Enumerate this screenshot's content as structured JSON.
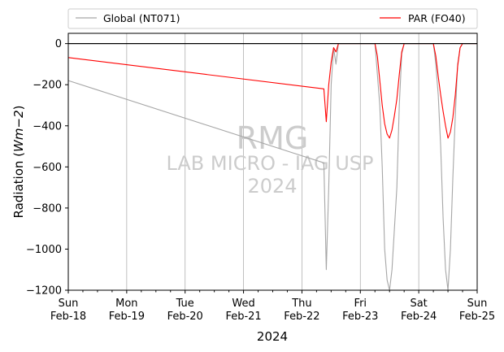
{
  "chart_data": {
    "type": "line",
    "xlabel": "2024",
    "ylabel_main": "Radiation (",
    "ylabel_unit_italic": "Wm",
    "ylabel_exponent": "−2",
    "ylabel_close": ")",
    "ylim": [
      -1200,
      50
    ],
    "yticks": [
      0,
      -200,
      -400,
      -600,
      -800,
      -1000,
      -1200
    ],
    "ytick_labels": [
      "0",
      "−200",
      "−400",
      "−600",
      "−800",
      "−1000",
      "−1200"
    ],
    "xlim": [
      "2024-02-18",
      "2024-02-25"
    ],
    "xticks": [
      {
        "day": "Sun",
        "date": "Feb-18"
      },
      {
        "day": "Mon",
        "date": "Feb-19"
      },
      {
        "day": "Tue",
        "date": "Feb-20"
      },
      {
        "day": "Wed",
        "date": "Feb-21"
      },
      {
        "day": "Thu",
        "date": "Feb-22"
      },
      {
        "day": "Fri",
        "date": "Feb-23"
      },
      {
        "day": "Sat",
        "date": "Feb-24"
      },
      {
        "day": "Sun",
        "date": "Feb-25"
      }
    ],
    "grid": "vertical-major",
    "zero_line": 0,
    "legend_position": "top",
    "watermark": [
      "RMG",
      "LAB MICRO - IAG USP",
      "2024"
    ],
    "series": [
      {
        "name": "Global (NT071)",
        "color": "#a6a6a6",
        "points": [
          [
            "2024-02-18 00:00",
            -180
          ],
          [
            "2024-02-22 09:00",
            -580
          ],
          [
            "2024-02-22 10:00",
            -1100
          ],
          [
            "2024-02-22 11:00",
            -700
          ],
          [
            "2024-02-22 12:00",
            -200
          ],
          [
            "2024-02-22 13:00",
            -20
          ],
          [
            "2024-02-22 14:00",
            -100
          ],
          [
            "2024-02-22 15:00",
            0
          ],
          [
            "2024-02-22 18:00",
            0
          ],
          [
            "2024-02-22 21:00",
            0
          ],
          [
            "2024-02-23 00:00",
            0
          ],
          [
            "2024-02-23 03:00",
            0
          ],
          [
            "2024-02-23 06:00",
            0
          ],
          [
            "2024-02-23 08:00",
            -300
          ],
          [
            "2024-02-23 09:00",
            -600
          ],
          [
            "2024-02-23 10:00",
            -1000
          ],
          [
            "2024-02-23 11:00",
            -1150
          ],
          [
            "2024-02-23 12:00",
            -1200
          ],
          [
            "2024-02-23 13:00",
            -1100
          ],
          [
            "2024-02-23 14:00",
            -900
          ],
          [
            "2024-02-23 15:00",
            -700
          ],
          [
            "2024-02-23 16:00",
            -300
          ],
          [
            "2024-02-23 17:00",
            -50
          ],
          [
            "2024-02-23 18:00",
            0
          ],
          [
            "2024-02-23 21:00",
            0
          ],
          [
            "2024-02-24 00:00",
            0
          ],
          [
            "2024-02-24 03:00",
            0
          ],
          [
            "2024-02-24 06:00",
            0
          ],
          [
            "2024-02-24 07:00",
            -100
          ],
          [
            "2024-02-24 08:00",
            -250
          ],
          [
            "2024-02-24 09:00",
            -500
          ],
          [
            "2024-02-24 10:00",
            -850
          ],
          [
            "2024-02-24 11:00",
            -1100
          ],
          [
            "2024-02-24 12:00",
            -1200
          ],
          [
            "2024-02-24 13:00",
            -1000
          ],
          [
            "2024-02-24 14:00",
            -650
          ],
          [
            "2024-02-24 15:00",
            -350
          ],
          [
            "2024-02-24 16:00",
            -100
          ],
          [
            "2024-02-24 17:00",
            -20
          ],
          [
            "2024-02-24 18:00",
            0
          ],
          [
            "2024-02-24 21:00",
            0
          ],
          [
            "2024-02-25 00:00",
            0
          ]
        ]
      },
      {
        "name": "PAR (FO40)",
        "color": "#ff0000",
        "points": [
          [
            "2024-02-18 00:00",
            -68
          ],
          [
            "2024-02-22 09:00",
            -220
          ],
          [
            "2024-02-22 10:00",
            -380
          ],
          [
            "2024-02-22 11:00",
            -200
          ],
          [
            "2024-02-22 12:00",
            -90
          ],
          [
            "2024-02-22 13:00",
            -20
          ],
          [
            "2024-02-22 14:00",
            -40
          ],
          [
            "2024-02-22 15:00",
            0
          ],
          [
            "2024-02-22 18:00",
            0
          ],
          [
            "2024-02-22 21:00",
            0
          ],
          [
            "2024-02-23 00:00",
            0
          ],
          [
            "2024-02-23 03:00",
            0
          ],
          [
            "2024-02-23 06:00",
            0
          ],
          [
            "2024-02-23 07:00",
            -60
          ],
          [
            "2024-02-23 08:00",
            -180
          ],
          [
            "2024-02-23 09:00",
            -300
          ],
          [
            "2024-02-23 10:00",
            -390
          ],
          [
            "2024-02-23 11:00",
            -440
          ],
          [
            "2024-02-23 12:00",
            -460
          ],
          [
            "2024-02-23 13:00",
            -420
          ],
          [
            "2024-02-23 14:00",
            -350
          ],
          [
            "2024-02-23 15:00",
            -270
          ],
          [
            "2024-02-23 16:00",
            -150
          ],
          [
            "2024-02-23 17:00",
            -40
          ],
          [
            "2024-02-23 18:00",
            0
          ],
          [
            "2024-02-23 21:00",
            0
          ],
          [
            "2024-02-24 00:00",
            0
          ],
          [
            "2024-02-24 03:00",
            0
          ],
          [
            "2024-02-24 06:00",
            0
          ],
          [
            "2024-02-24 07:00",
            -60
          ],
          [
            "2024-02-24 08:00",
            -160
          ],
          [
            "2024-02-24 09:00",
            -250
          ],
          [
            "2024-02-24 10:00",
            -330
          ],
          [
            "2024-02-24 11:00",
            -400
          ],
          [
            "2024-02-24 12:00",
            -460
          ],
          [
            "2024-02-24 13:00",
            -430
          ],
          [
            "2024-02-24 14:00",
            -360
          ],
          [
            "2024-02-24 15:00",
            -250
          ],
          [
            "2024-02-24 16:00",
            -110
          ],
          [
            "2024-02-24 17:00",
            -20
          ],
          [
            "2024-02-24 18:00",
            0
          ],
          [
            "2024-02-24 21:00",
            0
          ],
          [
            "2024-02-25 00:00",
            0
          ]
        ]
      }
    ]
  }
}
